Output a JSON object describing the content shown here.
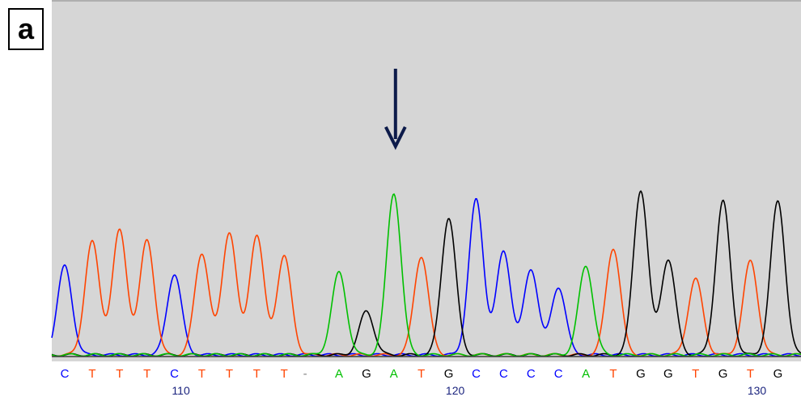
{
  "panel_label": "a",
  "colors": {
    "background": "#d6d6d6",
    "A": "#00c000",
    "C": "#0000ff",
    "G": "#000000",
    "T": "#ff4400",
    "gap": "#808080",
    "position": "#1a237e",
    "arrow": "#0d1b4a"
  },
  "chart_data": {
    "type": "line",
    "xlabel": "",
    "ylabel": "",
    "bases": [
      "C",
      "T",
      "T",
      "T",
      "C",
      "T",
      "T",
      "T",
      "T",
      "-",
      "A",
      "G",
      "A",
      "T",
      "G",
      "C",
      "C",
      "C",
      "C",
      "A",
      "T",
      "G",
      "G",
      "T",
      "G",
      "T",
      "G"
    ],
    "peak_heights": [
      0.55,
      0.7,
      0.77,
      0.71,
      0.5,
      0.63,
      0.76,
      0.74,
      0.61,
      0.42,
      0.51,
      0.27,
      1.0,
      0.61,
      0.85,
      0.96,
      0.64,
      0.53,
      0.42,
      0.55,
      0.66,
      1.02,
      0.59,
      0.47,
      0.95,
      0.58,
      0.95
    ],
    "position_labels": [
      {
        "text": "110",
        "base_index": 4
      },
      {
        "text": "120",
        "base_index": 14
      },
      {
        "text": "130",
        "base_index": 25
      }
    ],
    "arrow_base_index": 12
  }
}
